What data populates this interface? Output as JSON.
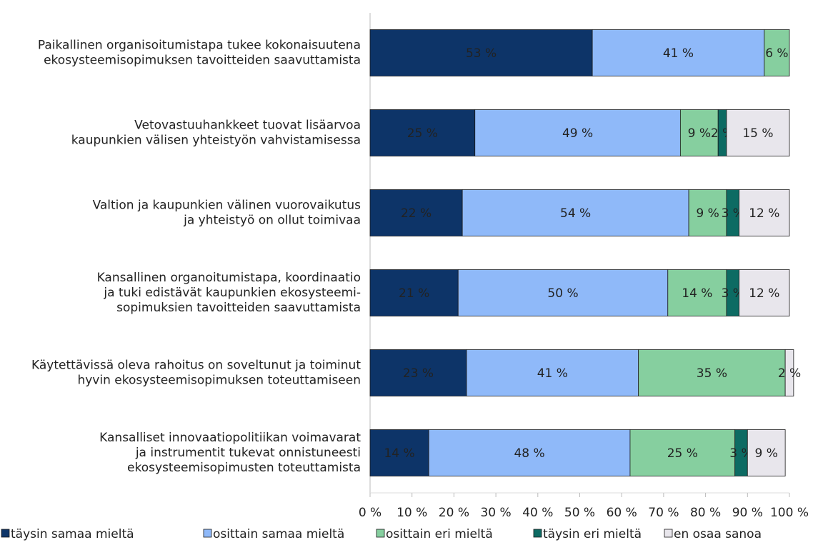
{
  "chart_data": {
    "type": "stacked-bar-horizontal",
    "categories": [
      "Paikallinen organisoitumistapa tukee kokonaisuutena\nekosysteemisopimuksen tavoitteiden saavuttamista",
      "Vetovastuuhankkeet tuovat lisäarvoa\nkaupunkien välisen yhteistyön vahvistamisessa",
      "Valtion ja kaupunkien välinen vuorovaikutus\nja yhteistyö on ollut toimivaa",
      "Kansallinen organoitumistapa, koordinaatio\nja tuki edistävät kaupunkien ekosysteemi-\nsopimuksien tavoitteiden saavuttamista",
      "Käytettävissä oleva rahoitus on soveltunut ja toiminut\nhyvin ekosysteemisopimuksen toteuttamiseen",
      "Kansalliset innovaatiopolitiikan voimavarat\nja instrumentit tukevat onnistuneesti\nekosysteemisopimusten toteuttamista"
    ],
    "series": [
      {
        "name": "täysin samaa mieltä",
        "color": "#0d3468",
        "values": [
          53,
          25,
          22,
          21,
          23,
          14
        ],
        "value_labels": [
          "53 %",
          "25 %",
          "22 %",
          "21 %",
          "23 %",
          "14 %"
        ]
      },
      {
        "name": "osittain samaa mieltä",
        "color": "#8fb9f9",
        "values": [
          41,
          49,
          54,
          50,
          41,
          48
        ],
        "value_labels": [
          "41 %",
          "49 %",
          "54 %",
          "50 %",
          "41 %",
          "48 %"
        ]
      },
      {
        "name": "osittain eri mieltä",
        "color": "#86cf9f",
        "values": [
          6,
          9,
          9,
          14,
          35,
          25
        ],
        "value_labels": [
          "6 %",
          "9 %",
          "9 %",
          "14 %",
          "35 %",
          "25 %"
        ]
      },
      {
        "name": "täysin eri mieltä",
        "color": "#0d6b63",
        "values": [
          null,
          2,
          3,
          3,
          null,
          3
        ],
        "value_labels": [
          null,
          "2 %",
          "3 %",
          "3 %",
          null,
          "3 %"
        ]
      },
      {
        "name": "en osaa sanoa",
        "color": "#e8e6ec",
        "values": [
          null,
          15,
          12,
          12,
          2,
          9
        ],
        "value_labels": [
          null,
          "15 %",
          "12 %",
          "12 %",
          "2 %",
          "9 %"
        ]
      }
    ],
    "xlim": [
      0,
      100
    ],
    "xticks": [
      {
        "value": 0,
        "label": "0 %"
      },
      {
        "value": 10,
        "label": "10 %"
      },
      {
        "value": 20,
        "label": "20 %"
      },
      {
        "value": 30,
        "label": "30 %"
      },
      {
        "value": 40,
        "label": "40 %"
      },
      {
        "value": 50,
        "label": "50 %"
      },
      {
        "value": 60,
        "label": "60 %"
      },
      {
        "value": 70,
        "label": "70 %"
      },
      {
        "value": 80,
        "label": "80 %"
      },
      {
        "value": 90,
        "label": "90 %"
      },
      {
        "value": 100,
        "label": "100 %"
      }
    ],
    "legend": "bottom"
  }
}
